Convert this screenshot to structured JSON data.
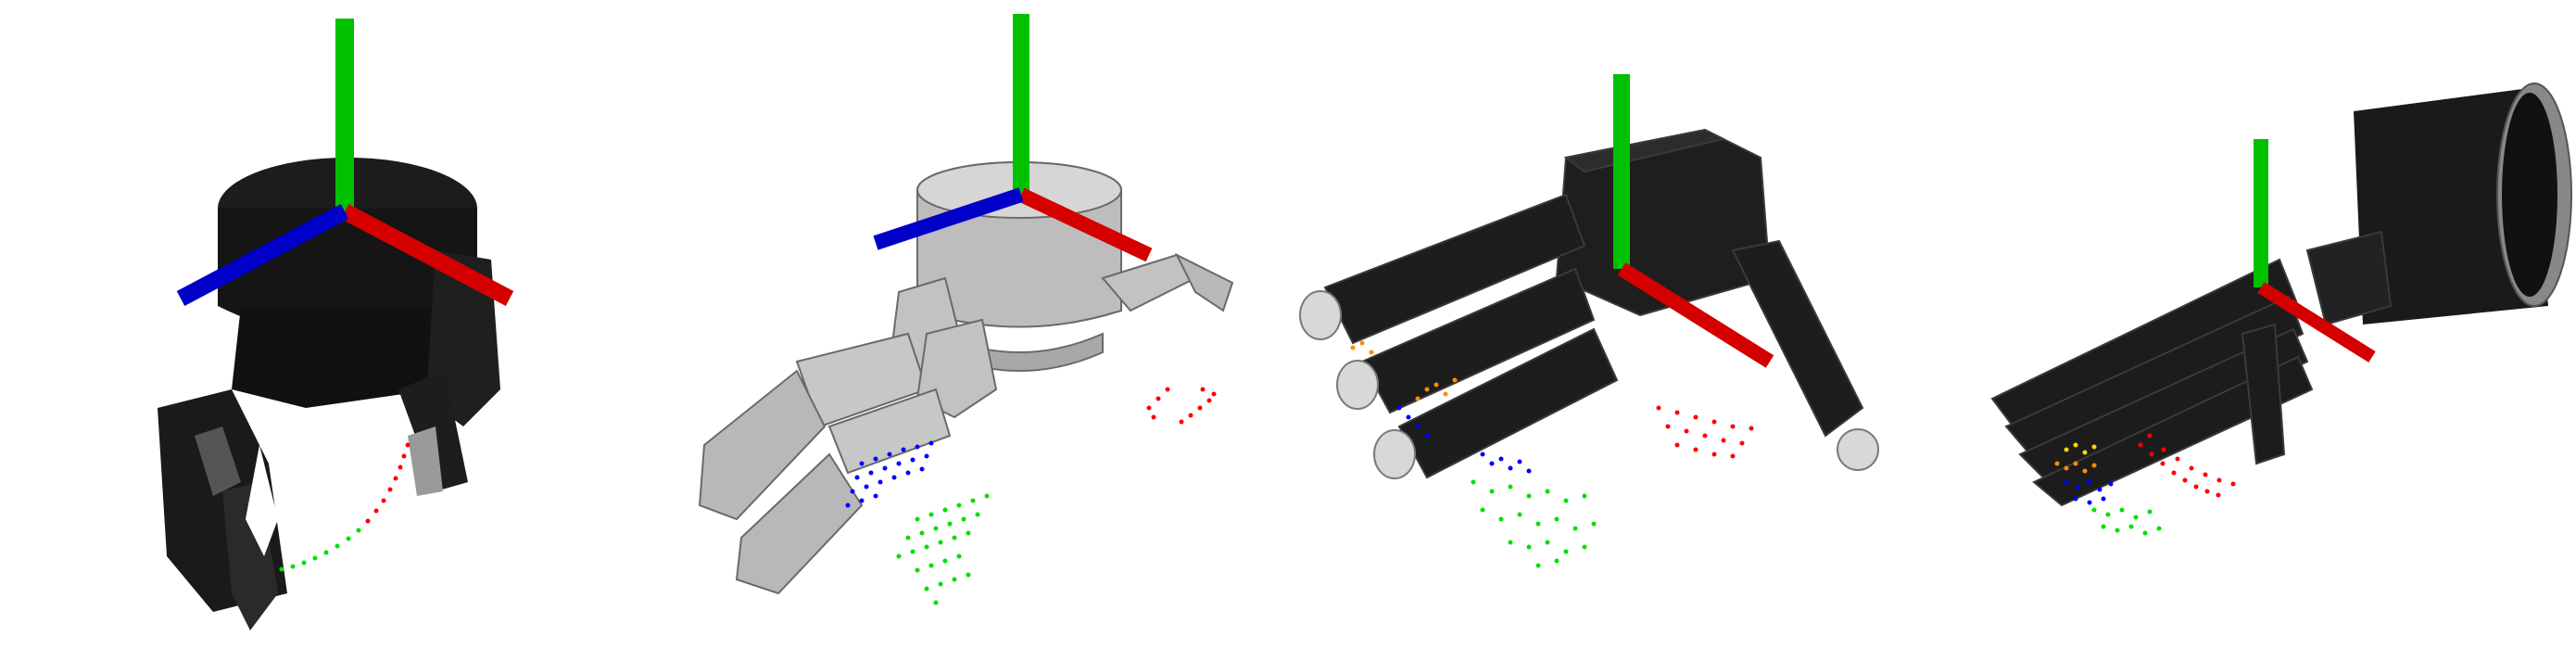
{
  "figure": {
    "panel_count": 4,
    "background": "#ffffff",
    "colors": {
      "axis_x": "#d40000",
      "axis_y": "#00c000",
      "axis_z": "#0000c8",
      "hand_dark": "#1c1c1c",
      "hand_light": "#bdbdbd",
      "fingertip_cap": "#d8d8d8",
      "points_red": "#ff0000",
      "points_green": "#00e000",
      "points_blue": "#0000ff",
      "points_orange": "#ff8c00",
      "points_yellow": "#ffd400"
    },
    "panels": [
      {
        "id": "gripper-two-finger",
        "hand_color": "dark",
        "point_clouds": [
          "red",
          "green"
        ]
      },
      {
        "id": "hand-three-finger-gray",
        "hand_color": "light",
        "point_clouds": [
          "red",
          "blue",
          "green"
        ]
      },
      {
        "id": "hand-four-finger-dark",
        "hand_color": "dark",
        "point_clouds": [
          "red",
          "orange",
          "blue",
          "green"
        ]
      },
      {
        "id": "hand-five-finger-dark",
        "hand_color": "dark",
        "point_clouds": [
          "red",
          "yellow",
          "orange",
          "blue",
          "green"
        ]
      }
    ]
  }
}
